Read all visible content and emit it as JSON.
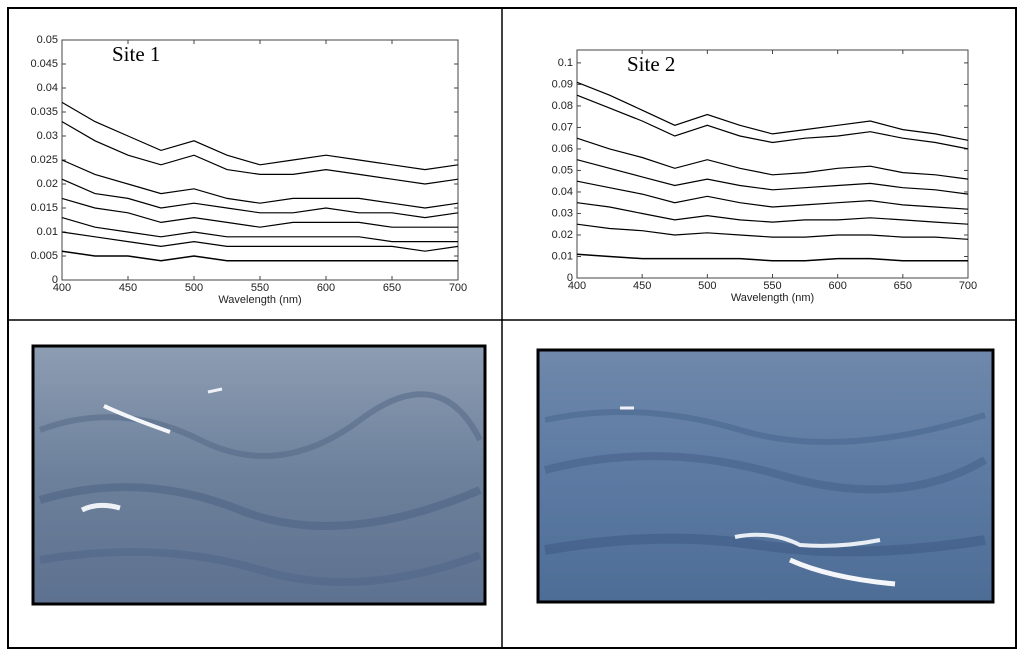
{
  "chart_data": [
    {
      "type": "line",
      "title": "Site 1",
      "xlabel": "Wavelength (nm)",
      "color": "#000000",
      "x": [
        400,
        425,
        450,
        475,
        500,
        525,
        550,
        575,
        600,
        625,
        650,
        675,
        700
      ],
      "xlim": [
        400,
        700
      ],
      "xticks": [
        400,
        450,
        500,
        550,
        600,
        650,
        700
      ],
      "ylim": [
        0,
        0.05
      ],
      "yticks": [
        0,
        0.005,
        0.01,
        0.015,
        0.02,
        0.025,
        0.03,
        0.035,
        0.04,
        0.045,
        0.05
      ],
      "series": [
        {
          "values": [
            0.037,
            0.033,
            0.03,
            0.027,
            0.029,
            0.026,
            0.024,
            0.025,
            0.026,
            0.025,
            0.024,
            0.023,
            0.024
          ]
        },
        {
          "values": [
            0.033,
            0.029,
            0.026,
            0.024,
            0.026,
            0.023,
            0.022,
            0.022,
            0.023,
            0.022,
            0.021,
            0.02,
            0.021
          ]
        },
        {
          "values": [
            0.025,
            0.022,
            0.02,
            0.018,
            0.019,
            0.017,
            0.016,
            0.017,
            0.017,
            0.017,
            0.016,
            0.015,
            0.016
          ]
        },
        {
          "values": [
            0.021,
            0.018,
            0.017,
            0.015,
            0.016,
            0.015,
            0.014,
            0.014,
            0.015,
            0.014,
            0.014,
            0.013,
            0.014
          ]
        },
        {
          "values": [
            0.017,
            0.015,
            0.014,
            0.012,
            0.013,
            0.012,
            0.011,
            0.012,
            0.012,
            0.012,
            0.011,
            0.011,
            0.011
          ]
        },
        {
          "values": [
            0.013,
            0.011,
            0.01,
            0.009,
            0.01,
            0.009,
            0.009,
            0.009,
            0.009,
            0.009,
            0.008,
            0.008,
            0.008
          ]
        },
        {
          "values": [
            0.01,
            0.009,
            0.008,
            0.007,
            0.008,
            0.007,
            0.007,
            0.007,
            0.007,
            0.007,
            0.007,
            0.006,
            0.007
          ]
        },
        {
          "values": [
            0.006,
            0.005,
            0.005,
            0.004,
            0.005,
            0.004,
            0.004,
            0.004,
            0.004,
            0.004,
            0.004,
            0.004,
            0.004
          ]
        }
      ]
    },
    {
      "type": "line",
      "title": "Site 2",
      "xlabel": "Wavelength (nm)",
      "color": "#000000",
      "x": [
        400,
        425,
        450,
        475,
        500,
        525,
        550,
        575,
        600,
        625,
        650,
        675,
        700
      ],
      "xlim": [
        400,
        700
      ],
      "xticks": [
        400,
        450,
        500,
        550,
        600,
        650,
        700
      ],
      "ylim": [
        0,
        0.106
      ],
      "yticks": [
        0,
        0.01,
        0.02,
        0.03,
        0.04,
        0.05,
        0.06,
        0.07,
        0.08,
        0.09,
        0.1
      ],
      "series": [
        {
          "values": [
            0.091,
            0.085,
            0.078,
            0.071,
            0.076,
            0.071,
            0.067,
            0.069,
            0.071,
            0.073,
            0.069,
            0.067,
            0.064
          ]
        },
        {
          "values": [
            0.085,
            0.079,
            0.073,
            0.066,
            0.071,
            0.066,
            0.063,
            0.065,
            0.066,
            0.068,
            0.065,
            0.063,
            0.06
          ]
        },
        {
          "values": [
            0.065,
            0.06,
            0.056,
            0.051,
            0.055,
            0.051,
            0.048,
            0.049,
            0.051,
            0.052,
            0.049,
            0.048,
            0.046
          ]
        },
        {
          "values": [
            0.055,
            0.051,
            0.047,
            0.043,
            0.046,
            0.043,
            0.041,
            0.042,
            0.043,
            0.044,
            0.042,
            0.041,
            0.039
          ]
        },
        {
          "values": [
            0.045,
            0.042,
            0.039,
            0.035,
            0.038,
            0.035,
            0.033,
            0.034,
            0.035,
            0.036,
            0.034,
            0.033,
            0.032
          ]
        },
        {
          "values": [
            0.035,
            0.033,
            0.03,
            0.027,
            0.029,
            0.027,
            0.026,
            0.027,
            0.027,
            0.028,
            0.027,
            0.026,
            0.025
          ]
        },
        {
          "values": [
            0.025,
            0.023,
            0.022,
            0.02,
            0.021,
            0.02,
            0.019,
            0.019,
            0.02,
            0.02,
            0.019,
            0.019,
            0.018
          ]
        },
        {
          "values": [
            0.011,
            0.01,
            0.009,
            0.009,
            0.009,
            0.009,
            0.008,
            0.008,
            0.009,
            0.009,
            0.008,
            0.008,
            0.008
          ]
        }
      ]
    }
  ]
}
